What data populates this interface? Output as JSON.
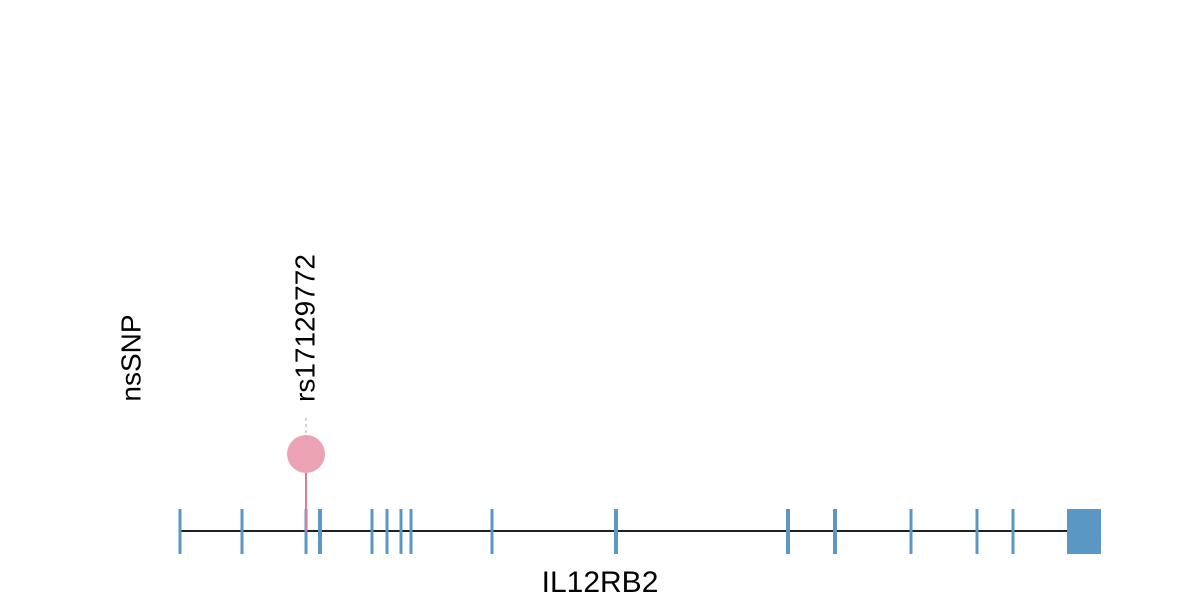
{
  "track": {
    "label": "nsSNP",
    "gene_name": "IL12RB2"
  },
  "colors": {
    "exon": "#5b97c4",
    "snp": "#eba3b3",
    "snp_stem": "#e07b93",
    "backbone": "#000000",
    "leader": "#aaaaaa"
  },
  "snps": [
    {
      "id": "rs17129772",
      "exon_index": 2
    }
  ],
  "exons": [
    {
      "index": 0,
      "kind": "thin"
    },
    {
      "index": 1,
      "kind": "thin"
    },
    {
      "index": 2,
      "kind": "thin"
    },
    {
      "index": 3,
      "kind": "medium"
    },
    {
      "index": 4,
      "kind": "thin"
    },
    {
      "index": 5,
      "kind": "thin"
    },
    {
      "index": 6,
      "kind": "thin"
    },
    {
      "index": 7,
      "kind": "thin"
    },
    {
      "index": 8,
      "kind": "thin"
    },
    {
      "index": 9,
      "kind": "medium"
    },
    {
      "index": 10,
      "kind": "medium"
    },
    {
      "index": 11,
      "kind": "medium"
    },
    {
      "index": 12,
      "kind": "thin"
    },
    {
      "index": 13,
      "kind": "thin"
    },
    {
      "index": 14,
      "kind": "thin"
    },
    {
      "index": 15,
      "kind": "utr"
    }
  ]
}
